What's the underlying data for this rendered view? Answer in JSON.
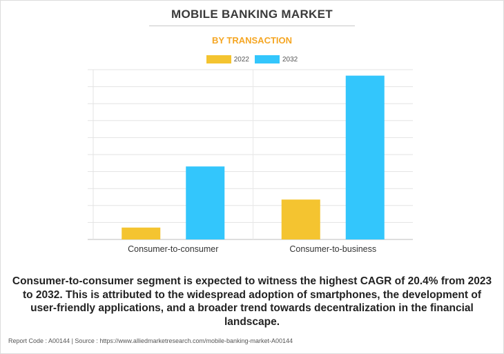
{
  "title": "MOBILE BANKING MARKET",
  "subtitle": "BY TRANSACTION",
  "caption": "Consumer-to-consumer segment is expected to witness the highest CAGR of 20.4% from 2023 to 2032. This is attributed to the widespread adoption of smartphones, the development of user-friendly applications, and a broader trend towards decentralization in the financial landscape.",
  "footer": "Report Code : A00144  |  Source : https://www.alliedmarketresearch.com/mobile-banking-market-A00144",
  "colors": {
    "y2022": "#f4c430",
    "y2032": "#33c6fc"
  },
  "chart_data": {
    "type": "bar",
    "title": "MOBILE BANKING MARKET",
    "subtitle": "BY TRANSACTION",
    "categories": [
      "Consumer-to-consumer",
      "Consumer-to-business"
    ],
    "series": [
      {
        "name": "2022",
        "values": [
          0.7,
          2.35
        ]
      },
      {
        "name": "2032",
        "values": [
          4.3,
          9.65
        ]
      }
    ],
    "ylim": [
      0,
      10
    ],
    "grid": true,
    "legend": "top-center",
    "xlabel": "",
    "ylabel": ""
  }
}
